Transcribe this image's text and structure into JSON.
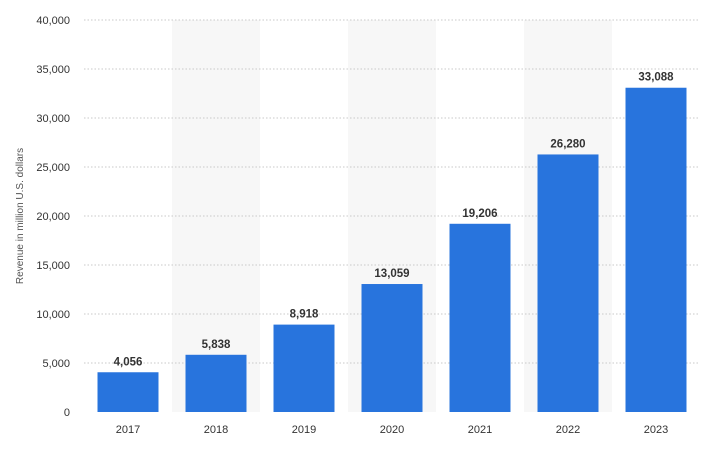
{
  "chart_data": {
    "type": "bar",
    "categories": [
      "2017",
      "2018",
      "2019",
      "2020",
      "2021",
      "2022",
      "2023"
    ],
    "values": [
      4056,
      5838,
      8918,
      13059,
      19206,
      26280,
      33088
    ],
    "value_labels": [
      "4,056",
      "5,838",
      "8,918",
      "13,059",
      "19,206",
      "26,280",
      "33,088"
    ],
    "ylabel": "Revenue in million U.S. dollars",
    "ylim": [
      0,
      40000
    ],
    "yticks": [
      0,
      5000,
      10000,
      15000,
      20000,
      25000,
      30000,
      35000,
      40000
    ],
    "ytick_labels": [
      "0",
      "5,000",
      "10,000",
      "15,000",
      "20,000",
      "25,000",
      "30,000",
      "35,000",
      "40,000"
    ],
    "grid": true,
    "bar_color": "#2874dd",
    "alt_band_color": "#f7f7f7",
    "grid_color": "#c8c8c8"
  }
}
